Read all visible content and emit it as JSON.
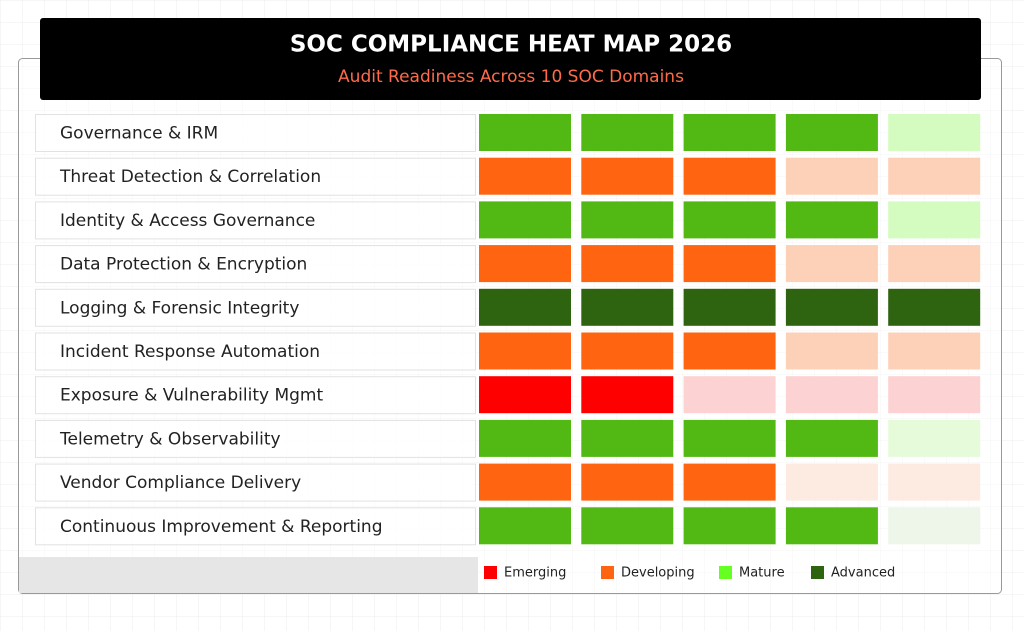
{
  "header": {
    "title": "SOC COMPLIANCE HEAT MAP 2026",
    "subtitle": "Audit Readiness Across 10 SOC Domains"
  },
  "heatmap": {
    "rows": [
      {
        "label": "Governance & IRM",
        "cells": [
          "#52b813",
          "#52b813",
          "#52b813",
          "#52b813",
          "#d4fbc0"
        ]
      },
      {
        "label": "Threat Detection & Correlation",
        "cells": [
          "#ff6410",
          "#ff6410",
          "#ff6410",
          "#fdd0b8",
          "#fdd0b8"
        ]
      },
      {
        "label": "Identity & Access Governance",
        "cells": [
          "#52b813",
          "#52b813",
          "#52b813",
          "#52b813",
          "#d4fbc0"
        ]
      },
      {
        "label": "Data Protection & Encryption",
        "cells": [
          "#ff6410",
          "#ff6410",
          "#ff6410",
          "#fdd0b8",
          "#fdd0b8"
        ]
      },
      {
        "label": "Logging & Forensic Integrity",
        "cells": [
          "#2e6410",
          "#2e6410",
          "#2e6410",
          "#2e6410",
          "#2e6410"
        ]
      },
      {
        "label": "Incident Response Automation",
        "cells": [
          "#ff6410",
          "#ff6410",
          "#ff6410",
          "#fdd0b8",
          "#fdd0b8"
        ]
      },
      {
        "label": "Exposure & Vulnerability Mgmt",
        "cells": [
          "#ff0000",
          "#ff0000",
          "#fdd2d2",
          "#fdd2d2",
          "#fdd2d2"
        ]
      },
      {
        "label": "Telemetry & Observability",
        "cells": [
          "#52b813",
          "#52b813",
          "#52b813",
          "#52b813",
          "#e6fbd9"
        ]
      },
      {
        "label": "Vendor Compliance Delivery",
        "cells": [
          "#ff6410",
          "#ff6410",
          "#ff6410",
          "#fdeae0",
          "#fdeae0"
        ]
      },
      {
        "label": "Continuous Improvement & Reporting",
        "cells": [
          "#52b813",
          "#52b813",
          "#52b813",
          "#52b813",
          "#eef6ea"
        ]
      }
    ]
  },
  "legend": [
    {
      "label": "Emerging",
      "color": "#ff0000"
    },
    {
      "label": "Developing",
      "color": "#ff6410"
    },
    {
      "label": "Mature",
      "color": "#66ff22"
    },
    {
      "label": "Advanced",
      "color": "#2e6410"
    }
  ]
}
